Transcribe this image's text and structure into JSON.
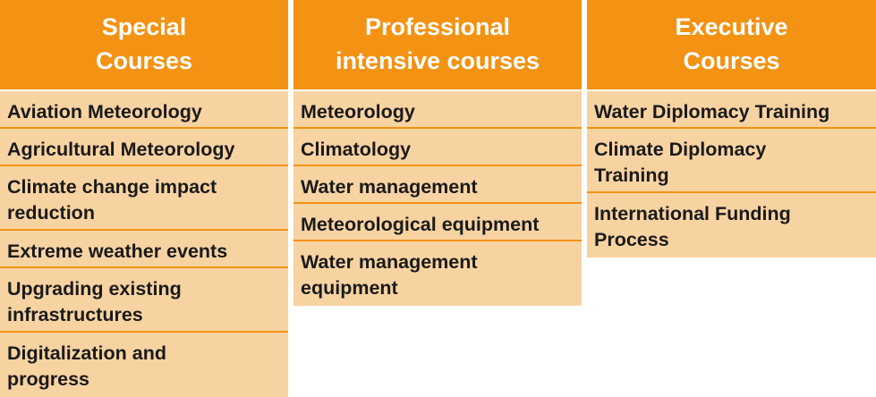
{
  "columns": [
    {
      "title": "Special\nCourses",
      "items": [
        "Aviation Meteorology",
        "Agricultural Meteorology",
        "Climate change impact\nreduction",
        "Extreme weather events",
        "Upgrading existing\ninfrastructures",
        "Digitalization and\nprogress"
      ]
    },
    {
      "title": "Professional\nintensive courses",
      "items": [
        "Meteorology",
        "Climatology",
        "Water management",
        "Meteorological equipment",
        "Water management\nequipment"
      ]
    },
    {
      "title": "Executive\nCourses",
      "items": [
        "Water Diplomacy Training",
        "Climate Diplomacy\nTraining",
        "International Funding\nProcess"
      ]
    }
  ],
  "colors": {
    "header_bg": "#F39213",
    "header_text": "#FFFFFF",
    "item_bg": "#F8D3A2",
    "item_text": "#1A1A1A"
  }
}
